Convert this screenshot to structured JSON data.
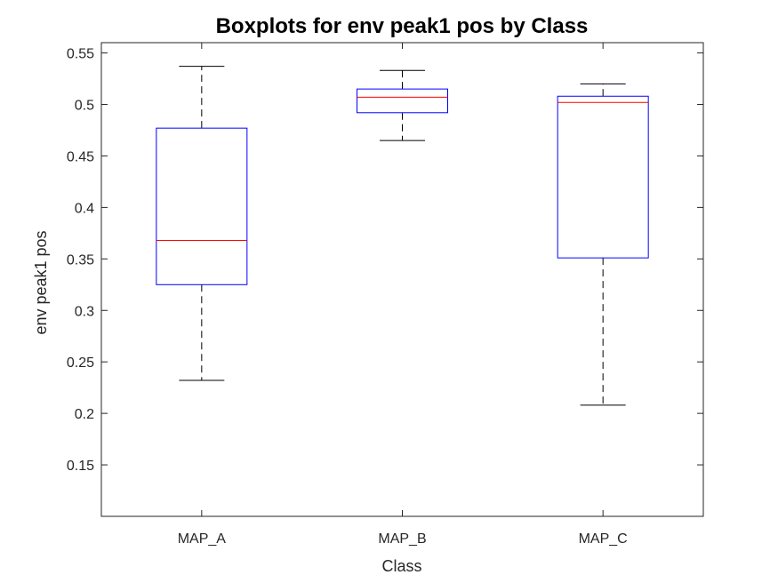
{
  "chart_data": {
    "type": "box",
    "title": "Boxplots for env peak1 pos by Class",
    "xlabel": "Class",
    "ylabel": "env peak1 pos",
    "ylim": [
      0.1,
      0.56
    ],
    "yticks": [
      "0.15",
      "0.2",
      "0.25",
      "0.3",
      "0.35",
      "0.4",
      "0.45",
      "0.5",
      "0.55"
    ],
    "categories": [
      "MAP_A",
      "MAP_B",
      "MAP_C"
    ],
    "boxes": [
      {
        "category": "MAP_A",
        "min": 0.232,
        "q1": 0.325,
        "median": 0.368,
        "q3": 0.477,
        "max": 0.537
      },
      {
        "category": "MAP_B",
        "min": 0.465,
        "q1": 0.492,
        "median": 0.507,
        "q3": 0.515,
        "max": 0.533
      },
      {
        "category": "MAP_C",
        "min": 0.208,
        "q1": 0.351,
        "median": 0.502,
        "q3": 0.508,
        "max": 0.52
      }
    ],
    "grid": false,
    "colors": {
      "box": "#0000ff",
      "median": "#ff0000",
      "whisker": "#000000",
      "axis": "#262626"
    }
  }
}
